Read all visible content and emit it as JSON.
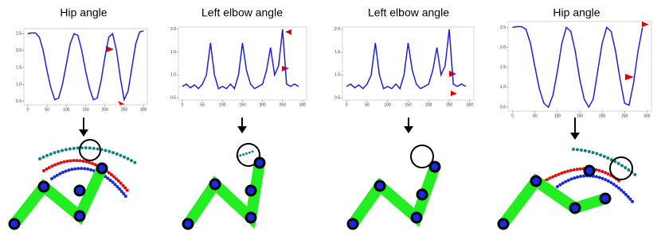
{
  "chart_data": [
    {
      "type": "line",
      "title": "Hip angle",
      "color": "#1f1fd6",
      "x": [
        0,
        10,
        20,
        30,
        40,
        50,
        60,
        70,
        80,
        90,
        100,
        110,
        120,
        130,
        140,
        150,
        160,
        170,
        180,
        190,
        200,
        210,
        220,
        230,
        240,
        250,
        260,
        270,
        280,
        290,
        300
      ],
      "values": [
        2.5,
        2.52,
        2.52,
        2.4,
        2.0,
        1.4,
        0.9,
        0.55,
        0.6,
        1.0,
        1.6,
        2.2,
        2.5,
        2.45,
        2.0,
        1.4,
        0.9,
        0.55,
        0.6,
        1.1,
        1.8,
        2.4,
        2.5,
        2.0,
        1.2,
        0.55,
        0.8,
        1.5,
        2.2,
        2.55,
        2.58
      ],
      "xlim": [
        -10,
        310
      ],
      "ylim": [
        0.4,
        2.65
      ],
      "xticks": [
        0,
        50,
        100,
        150,
        200,
        250,
        300
      ],
      "yticks": [
        {
          "value": 0.5,
          "label": "0.5"
        },
        {
          "value": 1,
          "label": "1.0"
        },
        {
          "value": 1.5,
          "label": "1.5"
        },
        {
          "value": 2,
          "label": "2.0"
        },
        {
          "value": 2.5,
          "label": "2.5"
        }
      ]
    },
    {
      "type": "line",
      "title": "Left elbow angle",
      "color": "#1f1fd6",
      "x": [
        0,
        10,
        20,
        30,
        40,
        50,
        60,
        70,
        80,
        90,
        100,
        110,
        120,
        130,
        140,
        150,
        160,
        170,
        180,
        190,
        200,
        210,
        220,
        230,
        240,
        250,
        260,
        270,
        280,
        290
      ],
      "values": [
        0.75,
        0.8,
        0.72,
        0.78,
        0.7,
        0.8,
        1.0,
        1.7,
        1.0,
        0.7,
        0.75,
        0.7,
        0.8,
        0.7,
        1.0,
        1.7,
        1.1,
        0.8,
        0.7,
        0.75,
        0.8,
        1.1,
        1.6,
        1.0,
        1.2,
        2.0,
        0.8,
        0.75,
        0.8,
        0.75
      ],
      "xlim": [
        -10,
        310
      ],
      "ylim": [
        0.45,
        2.05
      ],
      "xticks": [
        0,
        50,
        100,
        150,
        200,
        250,
        300
      ],
      "yticks": [
        {
          "value": 0.5,
          "label": "0.5"
        },
        {
          "value": 1,
          "label": "1.0"
        },
        {
          "value": 1.5,
          "label": "1.5"
        },
        {
          "value": 2,
          "label": "2.0"
        }
      ]
    },
    {
      "type": "line",
      "title": "Left elbow angle",
      "color": "#1f1fd6",
      "x": [
        0,
        10,
        20,
        30,
        40,
        50,
        60,
        70,
        80,
        90,
        100,
        110,
        120,
        130,
        140,
        150,
        160,
        170,
        180,
        190,
        200,
        210,
        220,
        230,
        240,
        250,
        260,
        270,
        280,
        290
      ],
      "values": [
        0.75,
        0.8,
        0.72,
        0.78,
        0.7,
        0.8,
        1.0,
        1.7,
        1.0,
        0.7,
        0.75,
        0.7,
        0.8,
        0.7,
        1.0,
        1.7,
        1.1,
        0.8,
        0.7,
        0.75,
        0.8,
        1.1,
        1.6,
        1.0,
        1.2,
        2.0,
        0.8,
        0.75,
        0.8,
        0.75
      ],
      "xlim": [
        -10,
        310
      ],
      "ylim": [
        0.45,
        2.05
      ],
      "xticks": [
        0,
        50,
        100,
        150,
        200,
        250,
        300
      ],
      "yticks": [
        {
          "value": 0.5,
          "label": "0.5"
        },
        {
          "value": 1,
          "label": "1.0"
        },
        {
          "value": 1.5,
          "label": "1.5"
        },
        {
          "value": 2,
          "label": "2.0"
        }
      ]
    },
    {
      "type": "line",
      "title": "Hip angle",
      "color": "#1f1fd6",
      "x": [
        0,
        10,
        20,
        30,
        40,
        50,
        60,
        70,
        80,
        90,
        100,
        110,
        120,
        130,
        140,
        150,
        160,
        170,
        180,
        190,
        200,
        210,
        220,
        230,
        240,
        250,
        260,
        270,
        280,
        290
      ],
      "values": [
        2.5,
        2.52,
        2.52,
        2.45,
        2.1,
        1.5,
        0.95,
        0.6,
        0.5,
        0.8,
        1.4,
        2.1,
        2.5,
        2.4,
        1.9,
        1.2,
        0.7,
        0.5,
        0.7,
        1.4,
        2.1,
        2.5,
        2.4,
        1.9,
        1.2,
        0.6,
        0.55,
        1.1,
        1.9,
        2.5
      ],
      "xlim": [
        -10,
        310
      ],
      "ylim": [
        0.4,
        2.65
      ],
      "xticks": [
        0,
        50,
        100,
        150,
        200,
        250,
        300
      ],
      "yticks": [
        {
          "value": 0.5,
          "label": "0.5"
        },
        {
          "value": 1,
          "label": "1.0"
        },
        {
          "value": 1.5,
          "label": "1.5"
        },
        {
          "value": 2,
          "label": "2.0"
        },
        {
          "value": 2.5,
          "label": "2.5"
        }
      ]
    }
  ]
}
